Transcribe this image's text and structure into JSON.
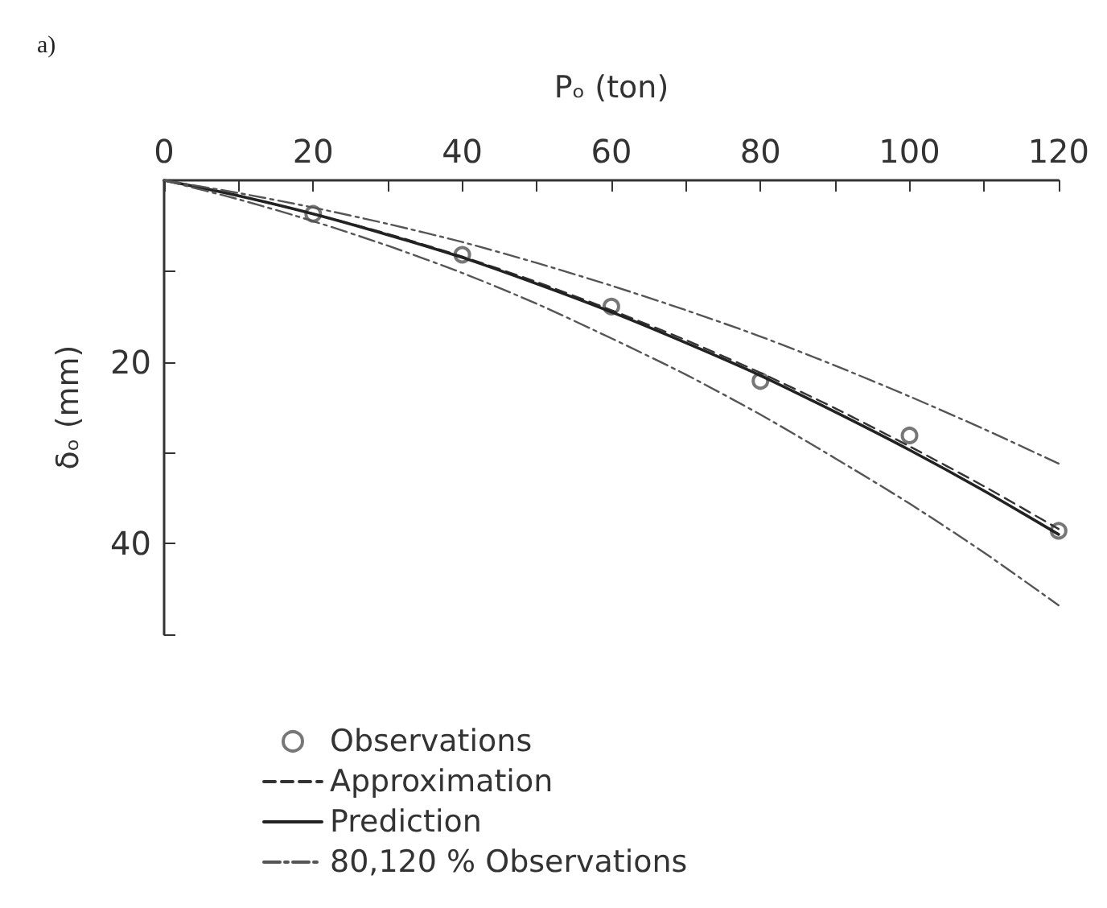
{
  "chart_data": {
    "type": "line",
    "title": "a)",
    "xlabel": "Pₒ (ton)",
    "ylabel": "δₒ (mm)",
    "x": [
      0,
      10,
      20,
      30,
      40,
      50,
      60,
      70,
      80,
      90,
      100,
      110,
      120
    ],
    "xlim": [
      0,
      120
    ],
    "xticks": [
      0,
      {
        "value": 10,
        "label": null
      },
      20,
      {
        "value": 30,
        "label": null
      },
      40,
      {
        "value": 50,
        "label": null
      },
      60,
      {
        "value": 70,
        "label": null
      },
      80,
      {
        "value": 90,
        "label": null
      },
      100,
      {
        "value": 110,
        "label": null
      },
      120
    ],
    "ylim": [
      50,
      0
    ],
    "yticks": [
      {
        "value": 10,
        "label": null
      },
      20,
      {
        "value": 30,
        "label": null
      },
      40,
      {
        "value": 50,
        "label": null
      }
    ],
    "grid": false,
    "legend": "bottom",
    "series": [
      {
        "name": "Observations",
        "type": "scatter",
        "marker": "circle",
        "color": "#555555",
        "x": [
          20,
          40,
          60,
          80,
          100,
          120
        ],
        "values": [
          3.7,
          8.2,
          13.9,
          22.1,
          28.1,
          38.6
        ]
      },
      {
        "name": "Approximation",
        "line_style": "dashed",
        "color": "#333333",
        "values": [
          0,
          1.7,
          3.7,
          5.9,
          8.4,
          11.2,
          14.3,
          17.6,
          21.2,
          25.1,
          29.3,
          33.7,
          38.4
        ]
      },
      {
        "name": "Prediction",
        "line_style": "solid",
        "color": "#222222",
        "values": [
          0,
          1.7,
          3.7,
          6,
          8.5,
          11.4,
          14.5,
          17.9,
          21.5,
          25.5,
          29.7,
          34.2,
          39
        ]
      },
      {
        "name": "80,120 % Observations",
        "line_style": "dashdot",
        "color": "#555555",
        "values": [
          0,
          1.4,
          3,
          4.8,
          6.8,
          9.1,
          11.6,
          14.3,
          17.2,
          20.4,
          23.8,
          27.4,
          31.2
        ]
      },
      {
        "line_style": "dashdot",
        "color": "#555555",
        "values": [
          0,
          2.1,
          4.5,
          7.2,
          10.2,
          13.6,
          17.4,
          21.4,
          25.8,
          30.6,
          35.6,
          41,
          46.8
        ]
      }
    ]
  }
}
